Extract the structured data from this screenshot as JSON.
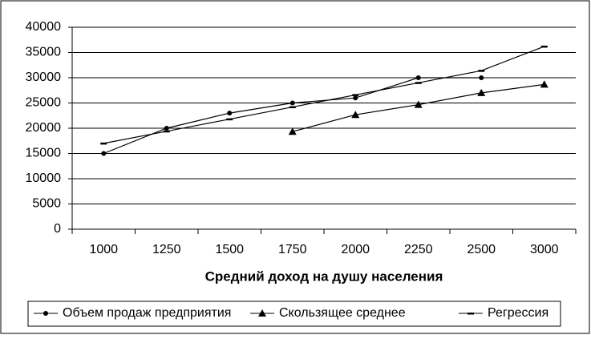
{
  "chart_data": {
    "type": "line",
    "x_label": "Средний доход на душу населения",
    "categories": [
      "1000",
      "1250",
      "1500",
      "1750",
      "2000",
      "2250",
      "2500",
      "3000"
    ],
    "series": [
      {
        "name": "Объем продаж предприятия",
        "color": "#000000",
        "marker": "circle",
        "values": [
          15000,
          20000,
          23000,
          25000,
          26000,
          30000,
          30000,
          null
        ]
      },
      {
        "name": "Скользящее среднее",
        "color": "#000000",
        "marker": "triangle",
        "values": [
          null,
          null,
          null,
          19333,
          22667,
          24667,
          27000,
          28667
        ]
      },
      {
        "name": "Регрессия",
        "color": "#000000",
        "marker": "dash",
        "values": [
          17000,
          19400,
          21800,
          24200,
          26600,
          29000,
          31400,
          36200
        ]
      }
    ],
    "ylim": [
      0,
      40000
    ],
    "yticks": [
      0,
      5000,
      10000,
      15000,
      20000,
      25000,
      30000,
      35000,
      40000
    ],
    "grid": true,
    "legend": "bottom"
  }
}
